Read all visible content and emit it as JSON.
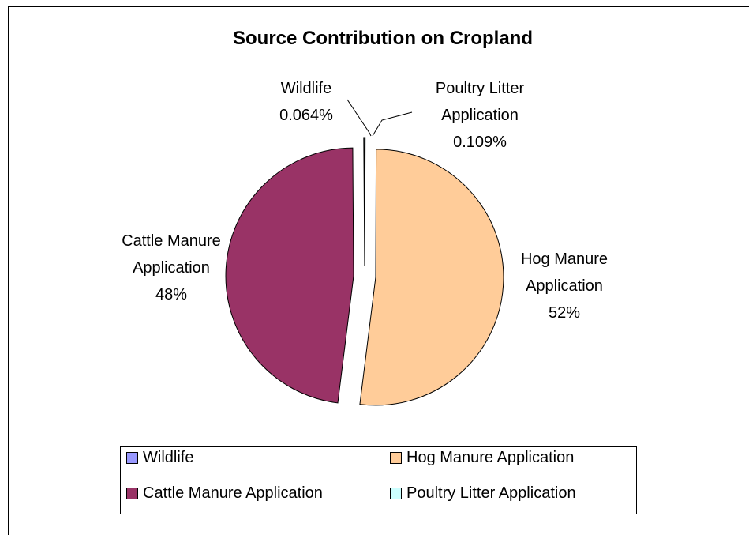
{
  "chart_data": {
    "type": "pie",
    "title": "Source Contribution on Cropland",
    "categories": [
      "Wildlife",
      "Hog Manure Application",
      "Cattle Manure Application",
      "Poultry Litter Application"
    ],
    "values": [
      0.064,
      52,
      48,
      0.109
    ],
    "value_labels": [
      "0.064%",
      "52%",
      "48%",
      "0.109%"
    ],
    "colors": [
      "#9999ff",
      "#ffcc99",
      "#993366",
      "#ccffff"
    ],
    "legend": "bottom"
  }
}
